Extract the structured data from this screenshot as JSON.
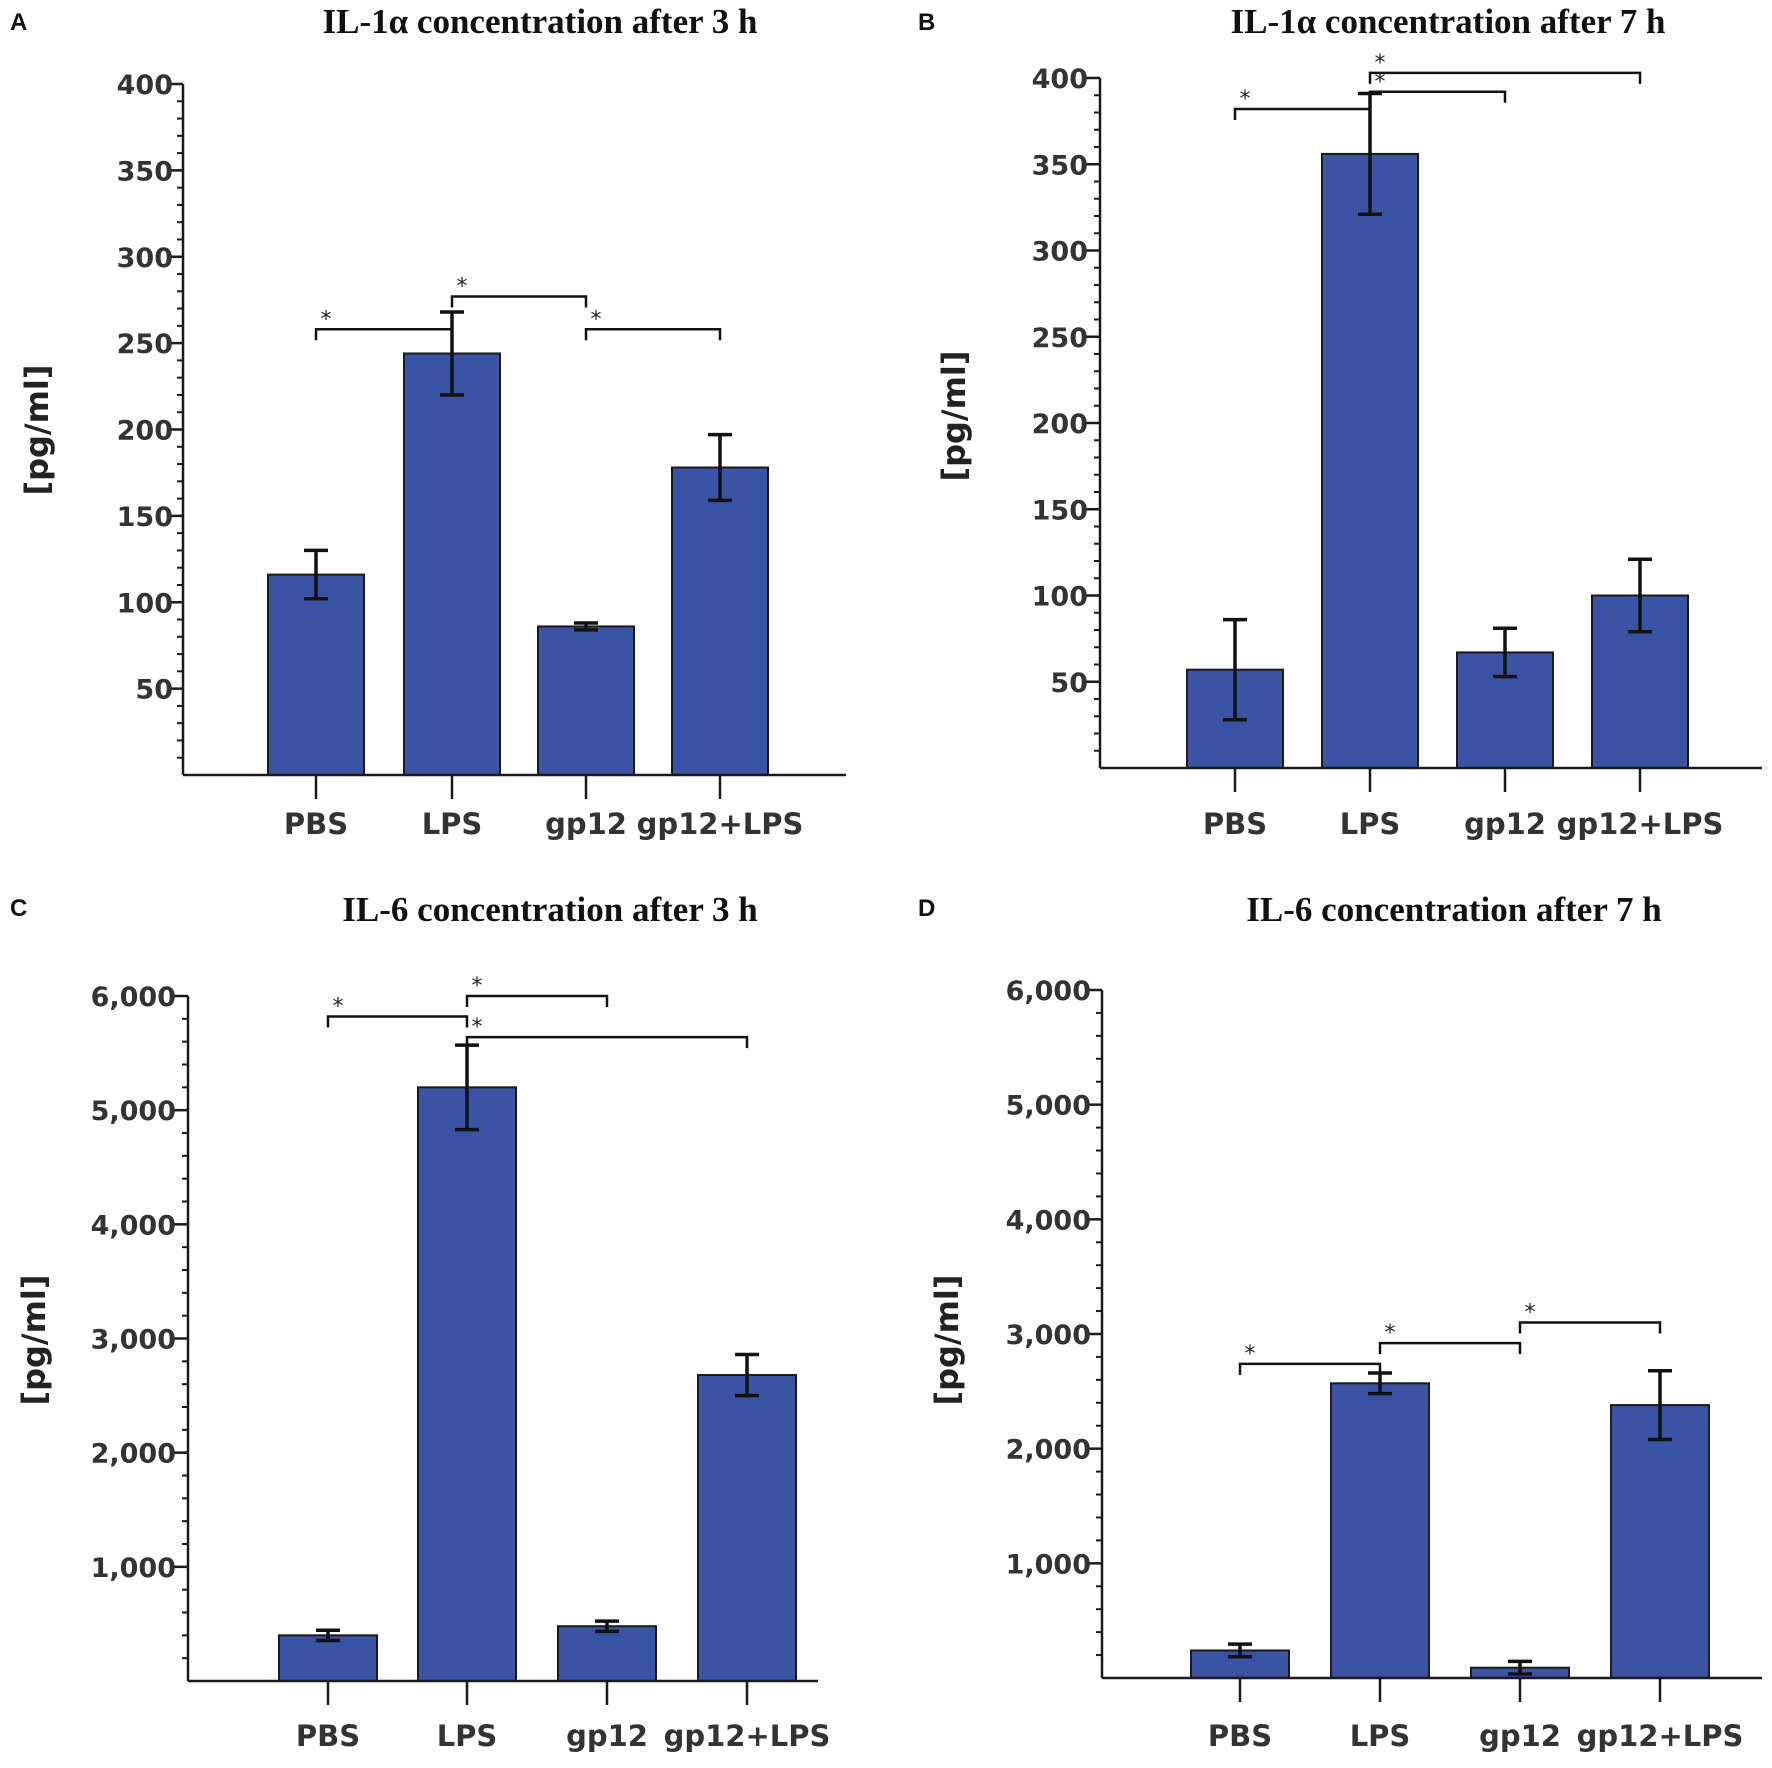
{
  "colors": {
    "bar": "#3b53a4",
    "bar_stroke": "#1a1a1a",
    "axis": "#1a1a1a",
    "text": "#222222"
  },
  "chart_data": [
    {
      "panel": "A",
      "type": "bar",
      "title": "IL-1α concentration after 3 h",
      "xlabel": "",
      "ylabel": "[pg/ml]",
      "categories": [
        "PBS",
        "LPS",
        "gp12",
        "gp12+LPS"
      ],
      "values": [
        116,
        244,
        86,
        178
      ],
      "errors": [
        14,
        24,
        2,
        19
      ],
      "ylim": [
        0,
        400
      ],
      "yticks": [
        50,
        100,
        150,
        200,
        250,
        300,
        350,
        400
      ],
      "ytick_labels": [
        "50",
        "100",
        "150",
        "200",
        "250",
        "300",
        "350",
        "400"
      ],
      "minor_step": 10,
      "significance": [
        {
          "from": 0,
          "to": 1,
          "y": 258,
          "label": "*"
        },
        {
          "from": 1,
          "to": 2,
          "y": 277,
          "label": "*"
        },
        {
          "from": 2,
          "to": 3,
          "y": 258,
          "label": "*"
        }
      ]
    },
    {
      "panel": "B",
      "type": "bar",
      "title": "IL-1α concentration after 7 h",
      "xlabel": "",
      "ylabel": "[pg/ml]",
      "categories": [
        "PBS",
        "LPS",
        "gp12",
        "gp12+LPS"
      ],
      "values": [
        57,
        356,
        67,
        100
      ],
      "errors": [
        29,
        35,
        14,
        21
      ],
      "ylim": [
        0,
        400
      ],
      "yticks": [
        50,
        100,
        150,
        200,
        250,
        300,
        350,
        400
      ],
      "ytick_labels": [
        "50",
        "100",
        "150",
        "200",
        "250",
        "300",
        "350",
        "400"
      ],
      "minor_step": 10,
      "significance": [
        {
          "from": 0,
          "to": 1,
          "y": 382,
          "label": "*"
        },
        {
          "from": 1,
          "to": 2,
          "y": 392,
          "label": "*"
        },
        {
          "from": 1,
          "to": 3,
          "y": 403,
          "label": "*"
        }
      ]
    },
    {
      "panel": "C",
      "type": "bar",
      "title": "IL-6 concentration after 3 h",
      "xlabel": "",
      "ylabel": "[pg/ml]",
      "categories": [
        "PBS",
        "LPS",
        "gp12",
        "gp12+LPS"
      ],
      "values": [
        400,
        5200,
        480,
        2680
      ],
      "errors": [
        45,
        370,
        45,
        180
      ],
      "ylim": [
        0,
        6000
      ],
      "yticks": [
        1000,
        2000,
        3000,
        4000,
        5000,
        6000
      ],
      "ytick_labels": [
        "1,000",
        "2,000",
        "3,000",
        "4,000",
        "5,000",
        "6,000"
      ],
      "minor_step": 200,
      "significance": [
        {
          "from": 0,
          "to": 1,
          "y": 5820,
          "label": "*"
        },
        {
          "from": 1,
          "to": 2,
          "y": 6000,
          "label": "*"
        },
        {
          "from": 1,
          "to": 3,
          "y": 5640,
          "label": "*"
        }
      ]
    },
    {
      "panel": "D",
      "type": "bar",
      "title": "IL-6 concentration after 7 h",
      "xlabel": "",
      "ylabel": "[pg/ml]",
      "categories": [
        "PBS",
        "LPS",
        "gp12",
        "gp12+LPS"
      ],
      "values": [
        240,
        2570,
        90,
        2380
      ],
      "errors": [
        55,
        90,
        55,
        300
      ],
      "ylim": [
        0,
        6000
      ],
      "yticks": [
        1000,
        2000,
        3000,
        4000,
        5000,
        6000
      ],
      "ytick_labels": [
        "1,000",
        "2,000",
        "3,000",
        "4,000",
        "5,000",
        "6,000"
      ],
      "minor_step": 200,
      "significance": [
        {
          "from": 0,
          "to": 1,
          "y": 2740,
          "label": "*"
        },
        {
          "from": 1,
          "to": 2,
          "y": 2920,
          "label": "*"
        },
        {
          "from": 2,
          "to": 3,
          "y": 3100,
          "label": "*"
        }
      ]
    }
  ]
}
